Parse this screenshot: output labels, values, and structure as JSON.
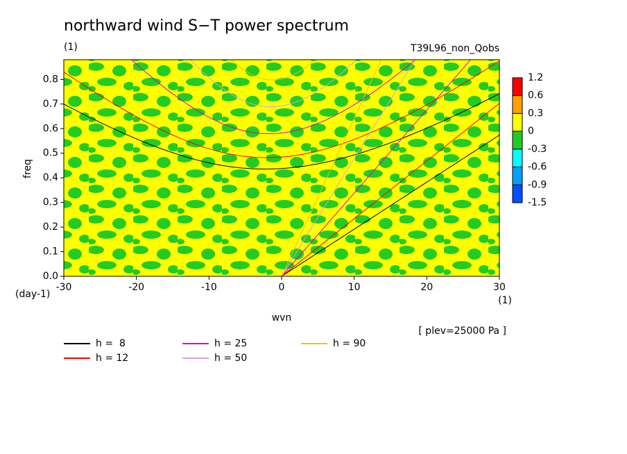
{
  "chart_data": {
    "type": "contour",
    "title": "northward wind S−T power spectrum",
    "subtitle": "(1)",
    "experiment": "T39L96_non_Qobs",
    "xlabel": "wvn",
    "ylabel": "freq",
    "xunit": "(1)",
    "yunit": "(day-1)",
    "annotation": "[ plev=25000 Pa ]",
    "xlim": [
      -30,
      30
    ],
    "xticks": [
      -30,
      -20,
      -10,
      0,
      10,
      20,
      30
    ],
    "ylim": [
      0,
      0.88
    ],
    "yticks": [
      {
        "value": 0,
        "label": "0.0"
      },
      0.1,
      0.2,
      0.3,
      0.4,
      0.5,
      0.6,
      0.7,
      0.8
    ],
    "colorbar": {
      "levels": [
        1.2,
        0.6,
        0.3,
        0,
        -0.3,
        -0.6,
        -0.9,
        -1.5
      ],
      "colors": [
        "#ff0000",
        "#ffa000",
        "#ffff00",
        "#22cc22",
        "#00ffff",
        "#00a0ff",
        "#0050ff"
      ]
    },
    "series": [
      {
        "name": "h =  8",
        "h": 8,
        "color": "#000000"
      },
      {
        "name": "h = 12",
        "h": 12,
        "color": "#ff0000"
      },
      {
        "name": "h = 25",
        "h": 25,
        "color": "#e000c0"
      },
      {
        "name": "h = 50",
        "h": 50,
        "color": "#d8a0e0"
      },
      {
        "name": "h = 90",
        "h": 90,
        "color": "#f0c000"
      }
    ]
  }
}
